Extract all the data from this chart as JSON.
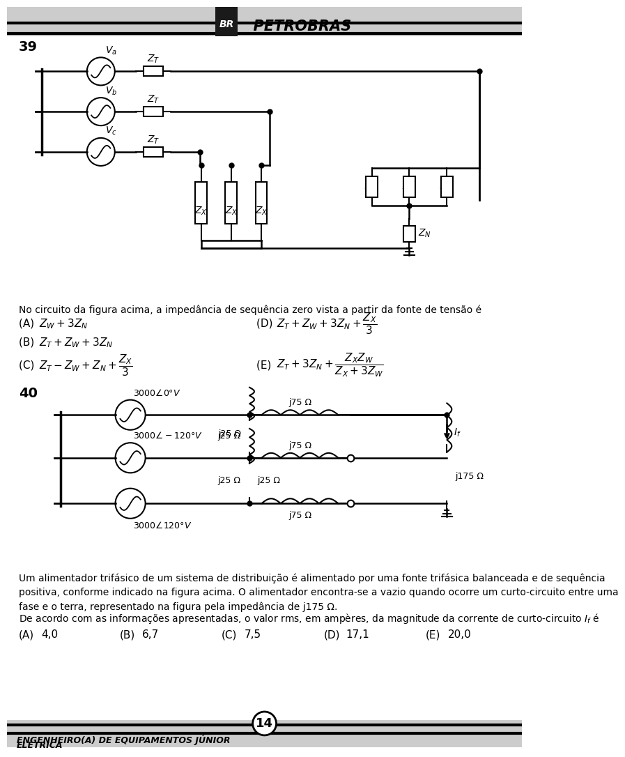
{
  "bg_color": "#ffffff",
  "page_number": "14",
  "footer_text1": "ENGENHEIRO(A) DE EQUIPAMENTOS JÚNIOR",
  "footer_text2": "ELÉTRICA",
  "q39": "39",
  "q40": "40",
  "circuit1_desc": "No circuito da figura acima, a impedância de sequência zero vista a partir da fonte de tensão é",
  "circuit2_desc1": "Um alimentador trifásico de um sistema de distribuição é alimentado por uma fonte trifásica balanceada e de sequência positiva, conforme indicado na figura acima. O alimentador encontra-se a vazio quando ocorre um curto-circuito entre uma fase e o terra, representado na figura pela impedância de j175 Ω.",
  "circuit2_desc2": "De acordo com as informações apresentadas, o valor rms, em ampères, da magnitude da corrente de curto-circuito If é",
  "opts1": [
    [
      "(A)",
      "Z_W + 3Z_N",
      30
    ],
    [
      "(B)",
      "Z_T + Z_W + 3Z_N",
      30
    ],
    [
      "(C)",
      "Z_T - Z_W + Z_N + ZX3",
      30
    ],
    [
      "(D)",
      "Z_T + Z_W + 3Z_N + ZX3",
      480
    ],
    [
      "(E)",
      "ZT3ZN_ZXZW",
      480
    ]
  ],
  "opts2": [
    [
      "(A)",
      "4,0"
    ],
    [
      "(B)",
      "6,7"
    ],
    [
      "(C)",
      "7,5"
    ],
    [
      "(D)",
      "17,1"
    ],
    [
      "(E)",
      "20,0"
    ]
  ]
}
